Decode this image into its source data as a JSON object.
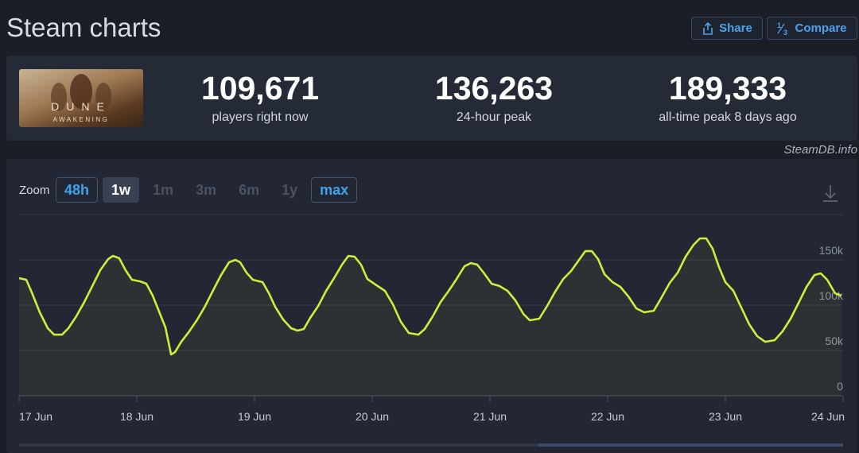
{
  "header": {
    "title": "Steam charts",
    "buttons": [
      "Share",
      "Compare"
    ]
  },
  "game": {
    "logo_title": "DUNE",
    "logo_subtitle": "AWAKENING"
  },
  "stats": [
    {
      "value": "109,671",
      "label": "players right now"
    },
    {
      "value": "136,263",
      "label": "24-hour peak"
    },
    {
      "value": "189,333",
      "label": "all-time peak 8 days ago"
    }
  ],
  "credit": "SteamDB.info",
  "zoom": {
    "label": "Zoom",
    "options": [
      {
        "label": "48h",
        "state": "available"
      },
      {
        "label": "1w",
        "state": "active"
      },
      {
        "label": "1m",
        "state": "disabled"
      },
      {
        "label": "3m",
        "state": "disabled"
      },
      {
        "label": "6m",
        "state": "disabled"
      },
      {
        "label": "1y",
        "state": "disabled"
      },
      {
        "label": "max",
        "state": "available"
      }
    ]
  },
  "chart_data": {
    "type": "line",
    "color": "#cdee3a",
    "grid": true,
    "x": [
      17.0,
      17.061,
      17.108,
      17.176,
      17.243,
      17.297,
      17.365,
      17.419,
      17.486,
      17.554,
      17.622,
      17.689,
      17.757,
      17.797,
      17.851,
      17.905,
      17.959,
      18.027,
      18.081,
      18.135,
      18.189,
      18.243,
      18.291,
      18.324,
      18.378,
      18.446,
      18.514,
      18.581,
      18.649,
      18.716,
      18.784,
      18.838,
      18.878,
      18.932,
      18.986,
      19.068,
      19.122,
      19.176,
      19.243,
      19.311,
      19.365,
      19.419,
      19.473,
      19.541,
      19.608,
      19.676,
      19.743,
      19.797,
      19.851,
      19.905,
      19.959,
      20.027,
      20.108,
      20.176,
      20.243,
      20.311,
      20.392,
      20.446,
      20.514,
      20.581,
      20.649,
      20.716,
      20.784,
      20.838,
      20.892,
      20.946,
      21.014,
      21.081,
      21.149,
      21.216,
      21.284,
      21.338,
      21.419,
      21.486,
      21.554,
      21.622,
      21.689,
      21.757,
      21.811,
      21.865,
      21.919,
      21.973,
      22.041,
      22.108,
      22.176,
      22.243,
      22.311,
      22.392,
      22.459,
      22.527,
      22.595,
      22.662,
      22.73,
      22.784,
      22.838,
      22.892,
      22.946,
      23.0,
      23.068,
      23.135,
      23.203,
      23.27,
      23.338,
      23.419,
      23.486,
      23.554,
      23.622,
      23.689,
      23.757,
      23.811,
      23.865,
      23.932,
      23.986
    ],
    "values": [
      129800,
      128100,
      114000,
      92100,
      74600,
      67500,
      67500,
      74600,
      87700,
      103500,
      121100,
      138600,
      150900,
      154400,
      151800,
      138600,
      128100,
      126300,
      123700,
      110500,
      93000,
      75400,
      45600,
      48200,
      59600,
      71100,
      84200,
      99100,
      116700,
      133300,
      147400,
      150000,
      147400,
      136000,
      128100,
      125400,
      113200,
      98200,
      84200,
      74600,
      71900,
      73700,
      86000,
      99100,
      115800,
      129800,
      144700,
      154400,
      153500,
      144700,
      128900,
      122800,
      115800,
      100900,
      81600,
      69300,
      67500,
      73700,
      87700,
      103500,
      115800,
      128900,
      143000,
      146500,
      144700,
      136000,
      123700,
      121100,
      115800,
      105300,
      90400,
      83300,
      85100,
      99100,
      114900,
      128900,
      137700,
      150000,
      159700,
      159700,
      150900,
      134200,
      125400,
      120200,
      109700,
      96500,
      92100,
      93900,
      108800,
      124600,
      136000,
      153500,
      166700,
      173700,
      173700,
      162300,
      142100,
      125400,
      115800,
      97400,
      78900,
      65800,
      59600,
      61400,
      71100,
      85100,
      102600,
      120200,
      133300,
      135100,
      128100,
      113200,
      110500
    ],
    "xlim": [
      17,
      24
    ],
    "xticks": [
      {
        "value": 17,
        "label": "17 Jun"
      },
      {
        "value": 18,
        "label": "18 Jun"
      },
      {
        "value": 19,
        "label": "19 Jun"
      },
      {
        "value": 20,
        "label": "20 Jun"
      },
      {
        "value": 21,
        "label": "21 Jun"
      },
      {
        "value": 22,
        "label": "22 Jun"
      },
      {
        "value": 23,
        "label": "23 Jun"
      },
      {
        "value": 24,
        "label": "24 Jun"
      }
    ],
    "ylim": [
      0,
      200000
    ],
    "yticks": [
      0,
      {
        "value": 50000,
        "label": "50k"
      },
      {
        "value": 100000,
        "label": "100k"
      },
      {
        "value": 150000,
        "label": "150k"
      }
    ]
  }
}
